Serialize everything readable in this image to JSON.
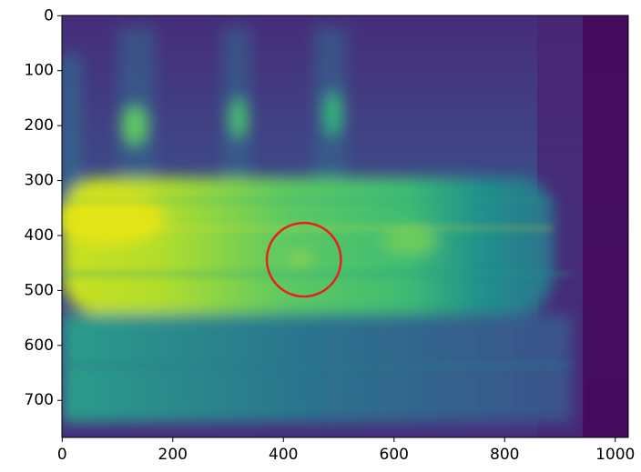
{
  "chart_data": {
    "type": "image",
    "xlim": [
      -0.5,
      1023.5
    ],
    "ylim": [
      767.5,
      -0.5
    ],
    "xticks": [
      0,
      200,
      400,
      600,
      800,
      1000
    ],
    "yticks": [
      0,
      100,
      200,
      300,
      400,
      500,
      600,
      700
    ],
    "colormap": "viridis",
    "annotations": [
      {
        "shape": "circle",
        "x": 437,
        "y": 444,
        "r": 67,
        "color": "#e8201c"
      }
    ]
  }
}
